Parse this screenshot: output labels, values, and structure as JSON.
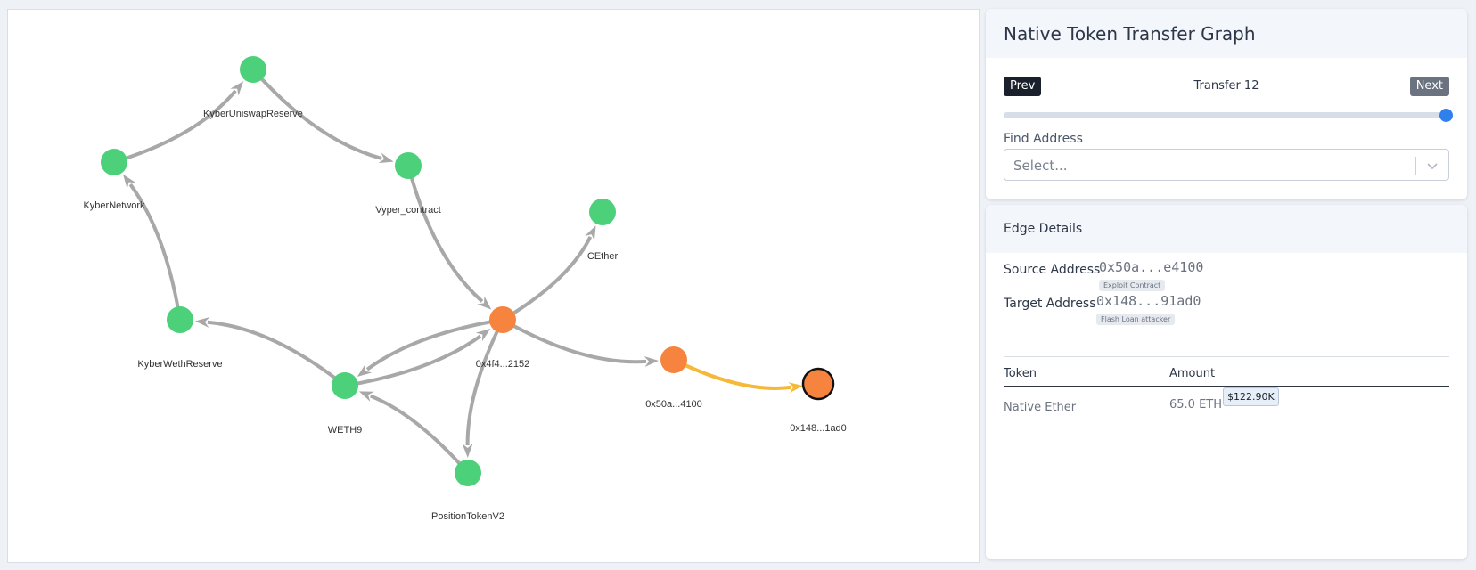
{
  "graph": {
    "nodes": [
      {
        "id": "kyberuniswap",
        "label": "KyberUniswapReserve",
        "color": "#4cd07a"
      },
      {
        "id": "kybernetwork",
        "label": "KyberNetwork",
        "color": "#4cd07a"
      },
      {
        "id": "vyper",
        "label": "Vyper_contract",
        "color": "#4cd07a"
      },
      {
        "id": "cether",
        "label": "CEther",
        "color": "#4cd07a"
      },
      {
        "id": "kyberweth",
        "label": "KyberWethReserve",
        "color": "#4cd07a"
      },
      {
        "id": "hub",
        "label": "0x4f4...2152",
        "color": "#f6843f"
      },
      {
        "id": "weth9",
        "label": "WETH9",
        "color": "#4cd07a"
      },
      {
        "id": "exploit",
        "label": "0x50a...4100",
        "color": "#f6843f"
      },
      {
        "id": "attacker",
        "label": "0x148...1ad0",
        "color": "#f6843f"
      },
      {
        "id": "position",
        "label": "PositionTokenV2",
        "color": "#4cd07a"
      }
    ],
    "edge_color": "#a8a8a8",
    "highlight_color": "#f5b838"
  },
  "panel": {
    "title": "Native Token Transfer Graph",
    "prev_label": "Prev",
    "next_label": "Next",
    "transfer_label": "Transfer 12",
    "slider_value": 1.0,
    "find_label": "Find Address",
    "select_placeholder": "Select..."
  },
  "edge_details": {
    "title": "Edge Details",
    "source_label": "Source Address",
    "source_address": "0x50a...e4100",
    "source_tag": "Exploit Contract",
    "target_label": "Target Address",
    "target_address": "0x148...91ad0",
    "target_tag": "Flash Loan attacker",
    "table": {
      "headers": [
        "Token",
        "Amount"
      ],
      "rows": [
        {
          "token": "Native Ether",
          "amount": "65.0 ETH",
          "usd": "$122.90K"
        }
      ]
    }
  }
}
